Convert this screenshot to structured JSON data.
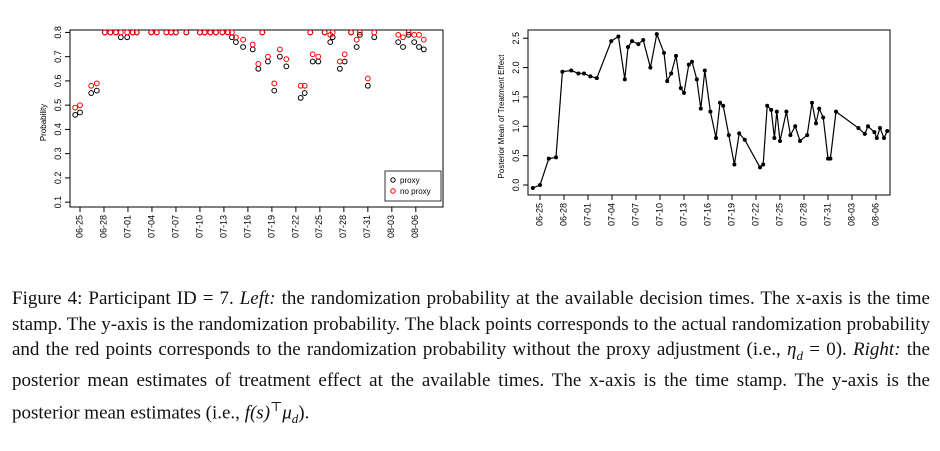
{
  "chart_data": [
    {
      "type": "scatter",
      "ylabel": "Probability",
      "x": [
        -0.6,
        0,
        1.4,
        2.1,
        3.1,
        3.8,
        4.5,
        5.1,
        5.9,
        6.6,
        7.1,
        8.9,
        9.6,
        10.8,
        11.4,
        12,
        13.3,
        15,
        15.6,
        16.3,
        17,
        17.8,
        18.5,
        19,
        19.5,
        20.4,
        21.6,
        22.3,
        22.8,
        23.5,
        24.3,
        25,
        25.8,
        27.6,
        28.1,
        28.8,
        29.1,
        29.8,
        30.6,
        31.3,
        31.6,
        32.5,
        33.1,
        33.9,
        34.6,
        35,
        36,
        36.8,
        39.8,
        40.4,
        41.1,
        41.8,
        42.4,
        43
      ],
      "series": [
        {
          "name": "proxy",
          "color": "#000000",
          "values": [
            0.46,
            0.47,
            0.55,
            0.56,
            0.8,
            0.8,
            0.8,
            0.78,
            0.78,
            0.8,
            0.8,
            0.8,
            0.8,
            0.8,
            0.8,
            0.8,
            0.8,
            0.8,
            0.8,
            0.8,
            0.8,
            0.8,
            0.8,
            0.78,
            0.76,
            0.74,
            0.73,
            0.65,
            0.8,
            0.68,
            0.56,
            0.7,
            0.66,
            0.53,
            0.55,
            0.8,
            0.68,
            0.68,
            0.8,
            0.76,
            0.78,
            0.65,
            0.68,
            0.8,
            0.74,
            0.79,
            0.58,
            0.78,
            0.76,
            0.74,
            0.79,
            0.76,
            0.74,
            0.73
          ]
        },
        {
          "name": "no proxy",
          "color": "#ff0000",
          "values": [
            0.49,
            0.5,
            0.58,
            0.59,
            0.8,
            0.8,
            0.8,
            0.8,
            0.8,
            0.8,
            0.8,
            0.8,
            0.8,
            0.8,
            0.8,
            0.8,
            0.8,
            0.8,
            0.8,
            0.8,
            0.8,
            0.8,
            0.8,
            0.8,
            0.78,
            0.77,
            0.75,
            0.67,
            0.8,
            0.7,
            0.59,
            0.73,
            0.69,
            0.58,
            0.58,
            0.8,
            0.71,
            0.7,
            0.8,
            0.79,
            0.8,
            0.68,
            0.71,
            0.8,
            0.77,
            0.8,
            0.61,
            0.8,
            0.79,
            0.78,
            0.8,
            0.79,
            0.79,
            0.77
          ]
        }
      ],
      "xlim": [
        -1.25,
        45.4
      ],
      "ylim": [
        0.08,
        0.81
      ],
      "xticks": [
        {
          "value": 0,
          "label": "06-25"
        },
        {
          "value": 3,
          "label": "06-28"
        },
        {
          "value": 6,
          "label": "07-01"
        },
        {
          "value": 9,
          "label": "07-04"
        },
        {
          "value": 12,
          "label": "07-07"
        },
        {
          "value": 15,
          "label": "07-10"
        },
        {
          "value": 18,
          "label": "07-13"
        },
        {
          "value": 21,
          "label": "07-16"
        },
        {
          "value": 24,
          "label": "07-19"
        },
        {
          "value": 27,
          "label": "07-22"
        },
        {
          "value": 30,
          "label": "07-25"
        },
        {
          "value": 33,
          "label": "07-28"
        },
        {
          "value": 36,
          "label": "07-31"
        },
        {
          "value": 39,
          "label": "08-03"
        },
        {
          "value": 42,
          "label": "08-06"
        }
      ],
      "yticks": [
        0.1,
        0.2,
        0.3,
        0.4,
        0.5,
        0.6,
        0.7,
        0.8
      ],
      "legend": "bottom-right"
    },
    {
      "type": "line",
      "ylabel": "Posterior Mean of Treatment Effect",
      "color": "#000000",
      "x": [
        -0.9,
        0,
        1.1,
        2,
        2.8,
        3.9,
        4.8,
        5.5,
        6.3,
        7.1,
        8.9,
        9.8,
        10.6,
        11,
        11.5,
        12.3,
        12.9,
        13.8,
        14.6,
        15.5,
        15.9,
        16.4,
        17,
        17.6,
        18,
        18.6,
        19,
        19.6,
        20.1,
        20.6,
        21.3,
        22,
        22.5,
        22.9,
        23.6,
        24.3,
        24.9,
        25.6,
        27.5,
        27.9,
        28.4,
        28.9,
        29.3,
        29.6,
        30,
        30.8,
        31.3,
        31.9,
        32.5,
        33.4,
        34,
        34.5,
        34.9,
        35.4,
        36,
        36.3,
        37,
        39.8,
        40.6,
        41,
        41.8,
        42.1,
        42.5,
        43,
        43.4
      ],
      "values": [
        -0.05,
        0,
        0.45,
        0.47,
        1.93,
        1.95,
        1.9,
        1.9,
        1.85,
        1.82,
        2.45,
        2.53,
        1.8,
        2.35,
        2.45,
        2.4,
        2.47,
        2,
        2.57,
        2.25,
        1.77,
        1.9,
        2.2,
        1.65,
        1.57,
        2.05,
        2.1,
        1.8,
        1.3,
        1.95,
        1.25,
        0.8,
        1.4,
        1.35,
        0.85,
        0.35,
        0.88,
        0.77,
        0.3,
        0.35,
        1.35,
        1.28,
        0.8,
        1.25,
        0.75,
        1.25,
        0.85,
        1,
        0.75,
        0.85,
        1.4,
        1.05,
        1.3,
        1.15,
        0.45,
        0.45,
        1.25,
        0.97,
        0.87,
        1,
        0.9,
        0.8,
        0.97,
        0.8,
        0.92
      ],
      "xlim": [
        -1.5,
        43.75
      ],
      "ylim": [
        -0.17,
        2.64
      ],
      "xticks": [
        {
          "value": 0,
          "label": "06-25"
        },
        {
          "value": 3,
          "label": "06-28"
        },
        {
          "value": 6,
          "label": "07-01"
        },
        {
          "value": 9,
          "label": "07-04"
        },
        {
          "value": 12,
          "label": "07-07"
        },
        {
          "value": 15,
          "label": "07-10"
        },
        {
          "value": 18,
          "label": "07-13"
        },
        {
          "value": 21,
          "label": "07-16"
        },
        {
          "value": 24,
          "label": "07-19"
        },
        {
          "value": 27,
          "label": "07-22"
        },
        {
          "value": 30,
          "label": "07-25"
        },
        {
          "value": 33,
          "label": "07-28"
        },
        {
          "value": 36,
          "label": "07-31"
        },
        {
          "value": 39,
          "label": "08-03"
        },
        {
          "value": 42,
          "label": "08-06"
        }
      ],
      "yticks": [
        {
          "value": 0,
          "label": "0.0"
        },
        0.5,
        {
          "value": 1,
          "label": "1.0"
        },
        1.5,
        {
          "value": 2,
          "label": "2.0"
        },
        2.5
      ]
    }
  ],
  "caption": [
    "Figure 4:  Participant ID = 7. ",
    "Left:",
    " the randomization probability at the available decision times. The x-axis is the time stamp. The y-axis is the randomization probability. The black points corresponds to the actual randomization probability and the red points corresponds to the randomization probability without the proxy adjustment (i.e., ",
    "η",
    "d",
    " = 0). ",
    "Right:",
    " the posterior mean estimates of treatment effect at the available times. The x-axis is the time stamp. The y-axis is the posterior mean estimates (i.e., ",
    "f(s)",
    "⊤",
    "μ",
    "d",
    ")."
  ]
}
